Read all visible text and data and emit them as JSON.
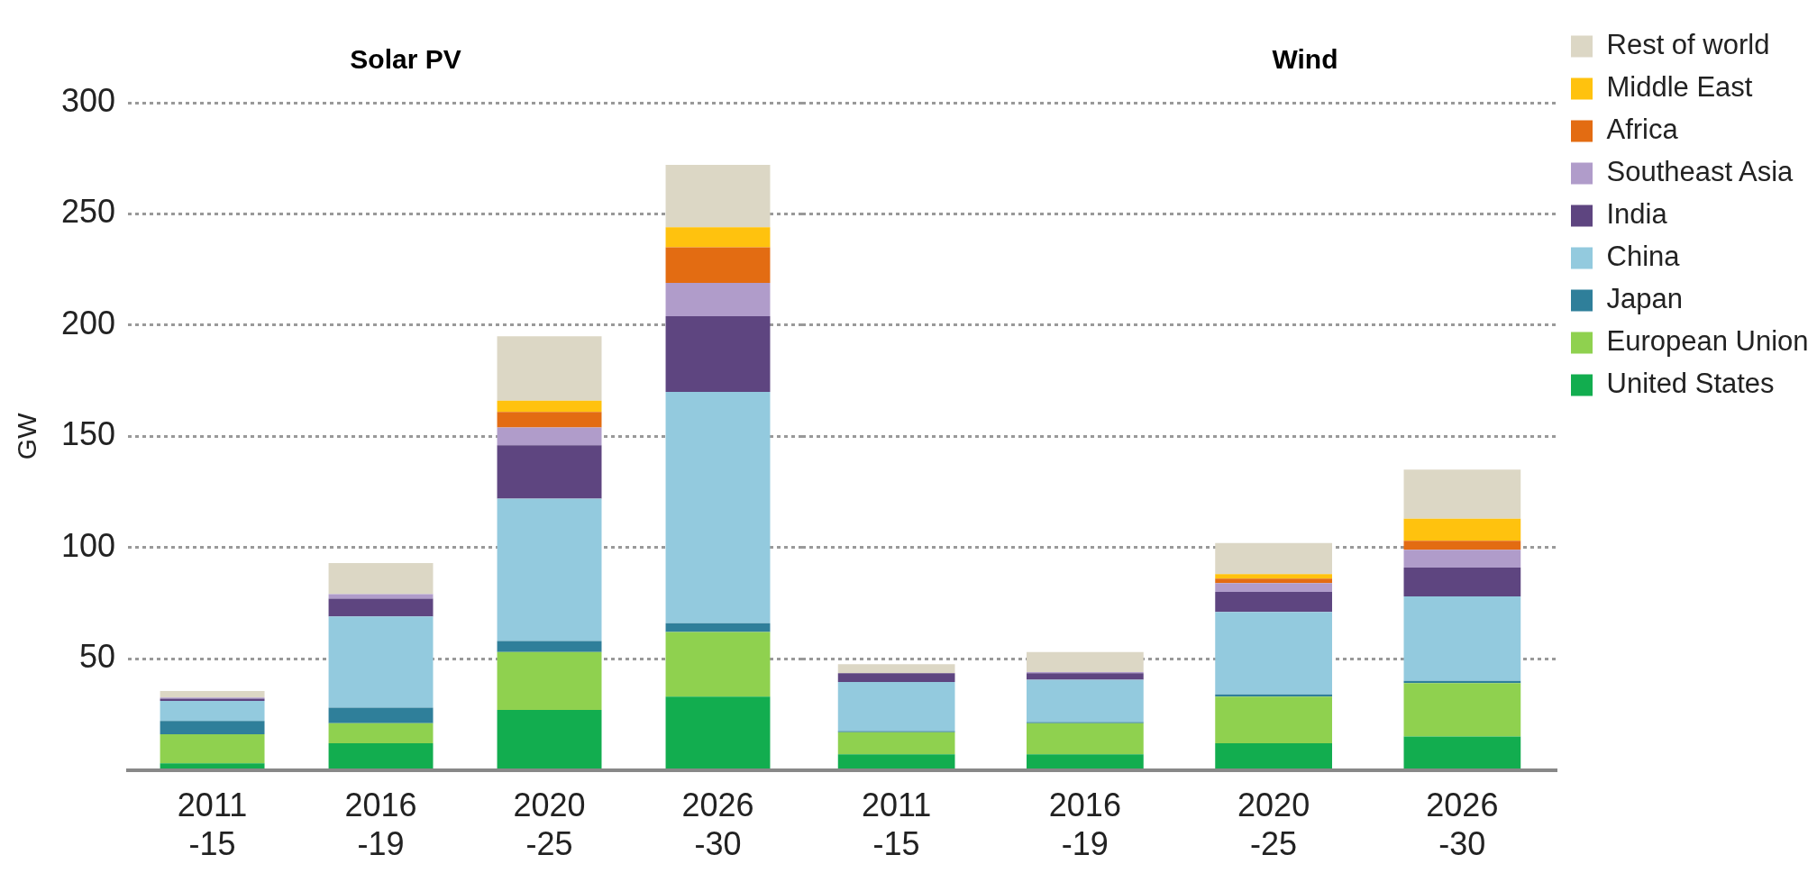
{
  "chart_data": [
    {
      "type": "bar",
      "title": "Solar PV",
      "ylabel": "GW",
      "categories": [
        "2011-15",
        "2016-19",
        "2020-25",
        "2026-30"
      ],
      "stacked": true,
      "ylim": [
        0,
        300
      ],
      "yticks": [
        {
          "value": 0,
          "label": null
        },
        50,
        100,
        150,
        200,
        250,
        300
      ],
      "grid": "y",
      "legend": false,
      "series": [
        {
          "color": "#12ad4f",
          "values": [
            3,
            12,
            27,
            33
          ]
        },
        {
          "color": "#8fd14f",
          "values": [
            13,
            9,
            26,
            29
          ]
        },
        {
          "color": "#2f7f9a",
          "values": [
            6,
            7,
            5,
            4
          ]
        },
        {
          "color": "#93cade",
          "values": [
            9,
            41,
            64,
            104
          ]
        },
        {
          "color": "#5e4580",
          "values": [
            1,
            8,
            24,
            34
          ]
        },
        {
          "color": "#b09cca",
          "values": [
            0.5,
            2,
            8,
            15
          ]
        },
        {
          "color": "#e36c12",
          "values": [
            0,
            0,
            7,
            16
          ]
        },
        {
          "color": "#ffc20e",
          "values": [
            0,
            0,
            5,
            9
          ]
        },
        {
          "color": "#dcd7c5",
          "values": [
            3,
            14,
            29,
            28
          ]
        }
      ]
    },
    {
      "type": "bar",
      "title": "Wind",
      "categories": [
        "2011-15",
        "2016-19",
        "2020-25",
        "2026-30"
      ],
      "stacked": true,
      "ylim": [
        0,
        300
      ],
      "yticks": [
        {
          "value": 0,
          "label": null
        },
        50,
        100,
        150,
        200,
        250,
        300
      ],
      "grid": "y",
      "legend": "right",
      "tick_labels": "x",
      "series": [
        {
          "name": "United States",
          "color": "#12ad4f",
          "values": [
            7,
            7,
            12,
            15
          ]
        },
        {
          "name": "European Union",
          "color": "#8fd14f",
          "values": [
            10,
            14,
            21,
            24
          ]
        },
        {
          "name": "Japan",
          "color": "#2f7f9a",
          "values": [
            0.5,
            0.5,
            1,
            1
          ]
        },
        {
          "name": "China",
          "color": "#93cade",
          "values": [
            22,
            19,
            37,
            38
          ]
        },
        {
          "name": "India",
          "color": "#5e4580",
          "values": [
            4,
            3,
            9,
            13
          ]
        },
        {
          "name": "Southeast Asia",
          "color": "#b09cca",
          "values": [
            0,
            0.5,
            4,
            8
          ]
        },
        {
          "name": "Africa",
          "color": "#e36c12",
          "values": [
            0,
            0,
            2,
            4
          ]
        },
        {
          "name": "Middle East",
          "color": "#ffc20e",
          "values": [
            0,
            0,
            2,
            10
          ]
        },
        {
          "name": "Rest of world",
          "color": "#dcd7c5",
          "values": [
            4,
            9,
            14,
            22
          ]
        }
      ]
    }
  ]
}
